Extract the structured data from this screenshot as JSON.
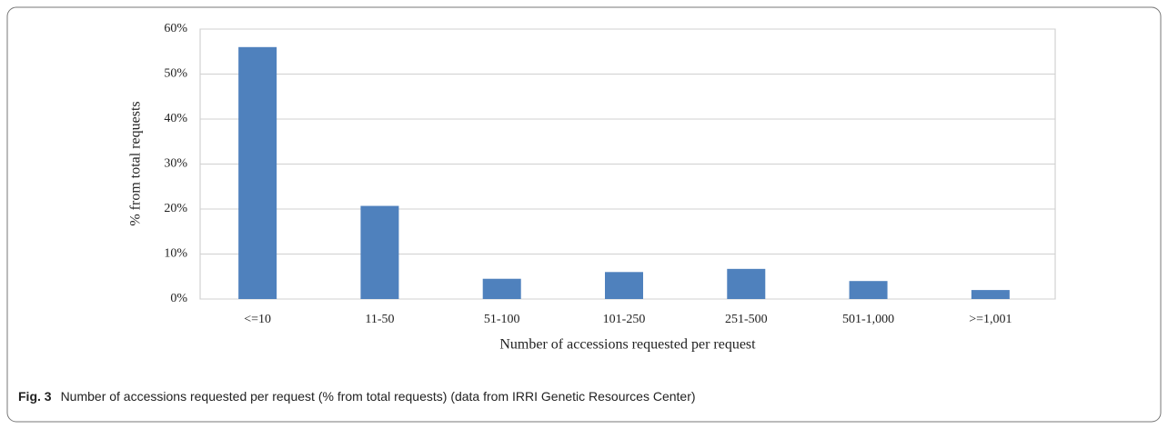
{
  "chart_data": {
    "type": "bar",
    "categories": [
      "<=10",
      "11-50",
      "51-100",
      "101-250",
      "251-500",
      "501-1,000",
      ">=1,001"
    ],
    "values": [
      56,
      20.7,
      4.5,
      6,
      6.7,
      4,
      2
    ],
    "color": "#4f81bd",
    "xlabel": "Number of accessions requested per request",
    "ylabel": "% from total requests",
    "ylim": [
      0,
      60
    ],
    "yticks": [
      {
        "value": 0,
        "label": "0%"
      },
      {
        "value": 10,
        "label": "10%"
      },
      {
        "value": 20,
        "label": "20%"
      },
      {
        "value": 30,
        "label": "30%"
      },
      {
        "value": 40,
        "label": "40%"
      },
      {
        "value": 50,
        "label": "50%"
      },
      {
        "value": 60,
        "label": "60%"
      }
    ],
    "grid": true
  },
  "caption": {
    "label": "Fig. 3",
    "text": "Number of accessions requested per request (% from total requests) (data from IRRI Genetic Resources Center)"
  }
}
